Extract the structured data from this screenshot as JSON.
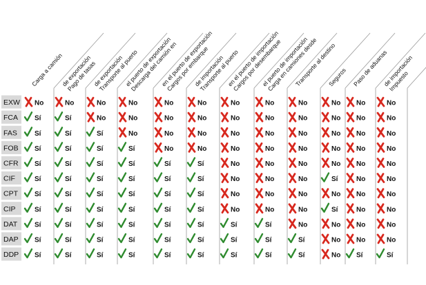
{
  "columns": [
    {
      "lines": [
        "Carga a camión"
      ]
    },
    {
      "lines": [
        "Pago de tasas",
        "de exportación"
      ]
    },
    {
      "lines": [
        "Transporte al puerto",
        "de exportación"
      ]
    },
    {
      "lines": [
        "Descarga del camión en",
        "el puerto de exportación"
      ]
    },
    {
      "lines": [
        "Cargos por embarque",
        "en el puerto de exportación"
      ]
    },
    {
      "lines": [
        "Transporte al puerto",
        "de importación"
      ]
    },
    {
      "lines": [
        "Cargos por desembarque",
        "en el puerto de importación"
      ]
    },
    {
      "lines": [
        "Carga en camiones desde",
        "el puerto de importación"
      ]
    },
    {
      "lines": [
        "Transporte al destino"
      ]
    },
    {
      "lines": [
        "Seguros"
      ]
    },
    {
      "lines": [
        "Paso de aduanas"
      ]
    },
    {
      "lines": [
        "Impuesto",
        "de importación"
      ]
    }
  ],
  "labels": {
    "yes": "Sí",
    "no": "No"
  },
  "colors": {
    "yes": "#2e8b2e",
    "no": "#d8281e",
    "term_bg": "#d9d9d9"
  },
  "icons": {
    "yes": "check-icon",
    "no": "cross-icon"
  },
  "rows": [
    {
      "term": "EXW",
      "values": [
        0,
        0,
        0,
        0,
        0,
        0,
        0,
        0,
        0,
        0,
        0,
        0
      ]
    },
    {
      "term": "FCA",
      "values": [
        1,
        1,
        0,
        0,
        0,
        0,
        0,
        0,
        0,
        0,
        0,
        0
      ]
    },
    {
      "term": "FAS",
      "values": [
        1,
        1,
        1,
        0,
        0,
        0,
        0,
        0,
        0,
        0,
        0,
        0
      ]
    },
    {
      "term": "FOB",
      "values": [
        1,
        1,
        1,
        1,
        0,
        0,
        0,
        0,
        0,
        0,
        0,
        0
      ]
    },
    {
      "term": "CFR",
      "values": [
        1,
        1,
        1,
        1,
        1,
        1,
        0,
        0,
        0,
        0,
        0,
        0
      ]
    },
    {
      "term": "CIF",
      "values": [
        1,
        1,
        1,
        1,
        1,
        1,
        0,
        0,
        0,
        1,
        0,
        0
      ]
    },
    {
      "term": "CPT",
      "values": [
        1,
        1,
        1,
        1,
        1,
        1,
        0,
        0,
        0,
        0,
        0,
        0
      ]
    },
    {
      "term": "CIP",
      "values": [
        1,
        1,
        1,
        1,
        1,
        1,
        0,
        0,
        0,
        1,
        0,
        0
      ]
    },
    {
      "term": "DAT",
      "values": [
        1,
        1,
        1,
        1,
        1,
        1,
        1,
        1,
        0,
        0,
        0,
        0
      ]
    },
    {
      "term": "DAP",
      "values": [
        1,
        1,
        1,
        1,
        1,
        1,
        1,
        1,
        1,
        0,
        0,
        0
      ]
    },
    {
      "term": "DDP",
      "values": [
        1,
        1,
        1,
        1,
        1,
        1,
        1,
        1,
        1,
        0,
        1,
        1
      ]
    }
  ]
}
